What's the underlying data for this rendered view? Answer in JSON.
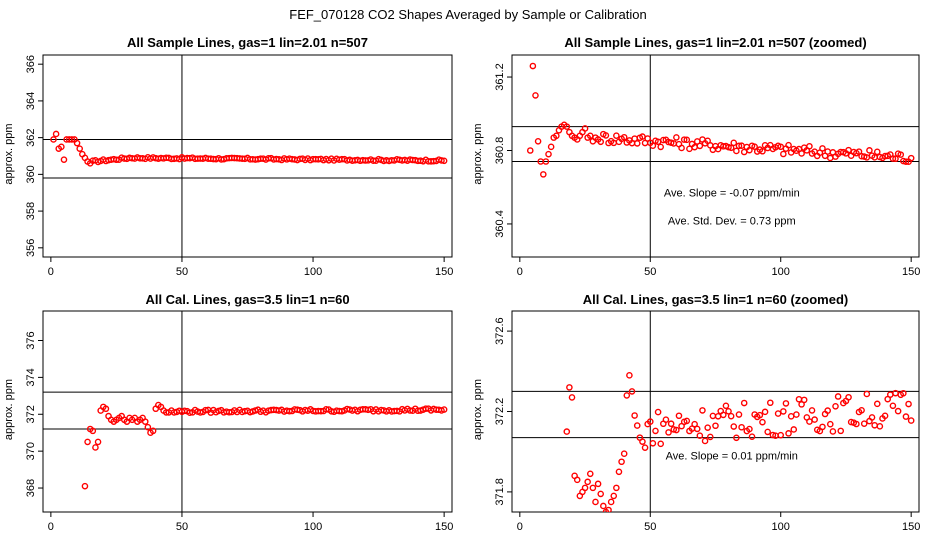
{
  "figure_title": "FEF_070128  CO2 Shapes Averaged by Sample or Calibration",
  "chart_data": [
    {
      "type": "scatter",
      "title": "All Sample Lines, gas=1 lin=2.01 n=507",
      "xlabel": "",
      "ylabel": "approx. ppm",
      "xlim": [
        -3,
        153
      ],
      "ylim": [
        355.5,
        366.5
      ],
      "xticks": [
        0,
        50,
        100,
        150
      ],
      "yticks": [
        356,
        358,
        360,
        362,
        364,
        366
      ],
      "vline": 50,
      "hlines": [
        359.8,
        361.9
      ],
      "marker_color": "#ff0000",
      "series_segments": [
        {
          "x_start": 1,
          "x_end": 15,
          "values": [
            361.9,
            362.2,
            361.4,
            361.5,
            360.8,
            361.9,
            361.9,
            361.9,
            361.9,
            361.7,
            361.4,
            361.1,
            360.9,
            360.7,
            360.6
          ]
        },
        {
          "x_start": 16,
          "x_end": 30,
          "from": 360.7,
          "to": 360.9,
          "noise": 0.06
        },
        {
          "x_start": 31,
          "x_end": 150,
          "from": 360.9,
          "to": 360.75,
          "noise": 0.05
        }
      ],
      "notes": []
    },
    {
      "type": "scatter",
      "title": "All Sample Lines, gas=1 lin=2.01 n=507 (zoomed)",
      "xlabel": "",
      "ylabel": "approx. ppm",
      "xlim": [
        -3,
        153
      ],
      "ylim": [
        360.22,
        361.32
      ],
      "xticks": [
        0,
        50,
        100,
        150
      ],
      "yticks": [
        360.4,
        360.8,
        361.2
      ],
      "vline": 50,
      "hlines": [
        360.74,
        360.93
      ],
      "marker_color": "#ff0000",
      "series_segments": [
        {
          "x_start": 4,
          "x_end": 30,
          "values": [
            360.8,
            361.26,
            361.1,
            360.85,
            360.74,
            360.67,
            360.74,
            360.78,
            360.82,
            360.87,
            360.88,
            360.91,
            360.93,
            360.94,
            360.93,
            360.9,
            360.88,
            360.87,
            360.86,
            360.88,
            360.9,
            360.92,
            360.87,
            360.88,
            360.85,
            360.87,
            360.86
          ]
        },
        {
          "x_start": 31,
          "x_end": 150,
          "from": 360.87,
          "to": 360.76,
          "noise": 0.03
        }
      ],
      "notes": [
        "Ave. Slope =  -0.07  ppm/min",
        "Ave. Std. Dev. =  0.73  ppm"
      ]
    },
    {
      "type": "scatter",
      "title": "All Cal. Lines, gas=3.5 lin=1 n=60",
      "xlabel": "",
      "ylabel": "approx. ppm",
      "xlim": [
        -3,
        153
      ],
      "ylim": [
        366.7,
        377.6
      ],
      "xticks": [
        0,
        50,
        100,
        150
      ],
      "yticks": [
        368,
        370,
        372,
        374,
        376
      ],
      "vline": 50,
      "hlines": [
        371.2,
        373.2
      ],
      "marker_color": "#ff0000",
      "series_segments": [
        {
          "x_start": 13,
          "x_end": 47,
          "values": [
            368.1,
            370.5,
            371.2,
            371.1,
            370.2,
            370.5,
            372.2,
            372.4,
            372.3,
            371.9,
            371.7,
            371.6,
            371.7,
            371.8,
            371.9,
            371.7,
            371.6,
            371.8,
            371.7,
            371.8,
            371.6,
            371.7,
            371.8,
            371.6,
            371.3,
            371.0,
            371.1,
            372.3,
            372.5,
            372.4,
            372.2,
            372.1,
            372.1,
            372.2,
            372.1
          ]
        },
        {
          "x_start": 48,
          "x_end": 150,
          "from": 372.15,
          "to": 372.25,
          "noise": 0.08
        }
      ],
      "notes": []
    },
    {
      "type": "scatter",
      "title": "All Cal. Lines, gas=3.5 lin=1 n=60 (zoomed)",
      "xlabel": "",
      "ylabel": "approx. ppm",
      "xlim": [
        -3,
        153
      ],
      "ylim": [
        371.7,
        372.7
      ],
      "xticks": [
        0,
        50,
        100,
        150
      ],
      "yticks": [
        371.8,
        372.2,
        372.6
      ],
      "vline": 50,
      "hlines": [
        372.07,
        372.3
      ],
      "marker_color": "#ff0000",
      "series_segments": [
        {
          "x_start": 18,
          "x_end": 48,
          "values": [
            372.1,
            372.32,
            372.27,
            371.88,
            371.86,
            371.78,
            371.8,
            371.82,
            371.85,
            371.89,
            371.82,
            371.75,
            371.84,
            371.79,
            371.73,
            371.7,
            371.71,
            371.75,
            371.78,
            371.82,
            371.9,
            371.95,
            371.99,
            372.28,
            372.38,
            372.3,
            372.18,
            372.13,
            372.07,
            372.05,
            372.02
          ]
        },
        {
          "x_start": 49,
          "x_end": 150,
          "from": 372.12,
          "to": 372.22,
          "noise": 0.09
        }
      ],
      "notes": [
        "Ave. Slope =  0.01  ppm/min"
      ]
    }
  ]
}
